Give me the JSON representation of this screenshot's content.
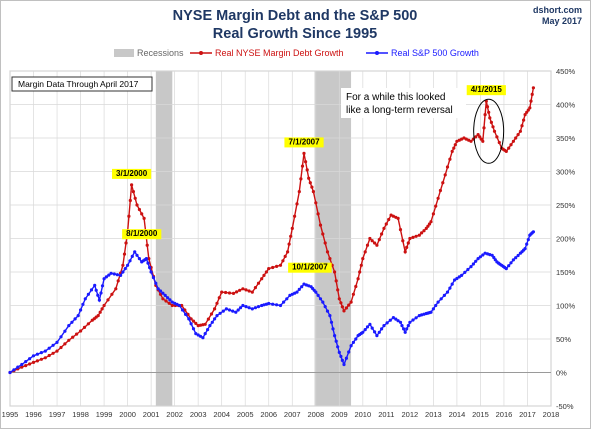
{
  "header": {
    "title_line1": "NYSE Margin Debt and the S&P 500",
    "title_line2": "Real Growth Since 1995",
    "source": "dshort.com",
    "date": "May 2017"
  },
  "note": "Margin Data Through April 2017",
  "callout": {
    "line1": "For a while this looked",
    "line2": "like a long-term reversal"
  },
  "colors": {
    "margin": "#cc1111",
    "sp500": "#1a1aff",
    "recession": "#c8c8c8",
    "highlight": "#ffff00",
    "title": "#1f3864"
  },
  "chart_data": {
    "type": "line",
    "title": "NYSE Margin Debt and the S&P 500 Real Growth Since 1995",
    "xlim": [
      1995,
      2018
    ],
    "ylim": [
      -50,
      450
    ],
    "x_ticks": [
      "1995",
      "1996",
      "1997",
      "1998",
      "1999",
      "2000",
      "2001",
      "2002",
      "2003",
      "2004",
      "2005",
      "2006",
      "2007",
      "2008",
      "2009",
      "2010",
      "2011",
      "2012",
      "2013",
      "2014",
      "2015",
      "2016",
      "2017",
      "2018"
    ],
    "y_ticks": [
      "-50%",
      "0%",
      "50%",
      "100%",
      "150%",
      "200%",
      "250%",
      "300%",
      "350%",
      "400%",
      "450%"
    ],
    "grid": true,
    "legend_position": "top",
    "legend": [
      {
        "label": "Recessions",
        "kind": "band"
      },
      {
        "label": "Real NYSE Margin Debt Growth",
        "kind": "line"
      },
      {
        "label": "Real S&P 500 Growth",
        "kind": "line"
      }
    ],
    "recessions": [
      [
        2001.2,
        2001.9
      ],
      [
        2007.95,
        2009.5
      ]
    ],
    "series": [
      {
        "name": "Real NYSE Margin Debt Growth",
        "points": [
          [
            1995.0,
            0
          ],
          [
            1995.5,
            8
          ],
          [
            1996.0,
            15
          ],
          [
            1996.5,
            22
          ],
          [
            1997.0,
            32
          ],
          [
            1997.5,
            48
          ],
          [
            1998.0,
            62
          ],
          [
            1998.5,
            78
          ],
          [
            1998.75,
            85
          ],
          [
            1999.0,
            100
          ],
          [
            1999.5,
            125
          ],
          [
            1999.8,
            160
          ],
          [
            2000.0,
            210
          ],
          [
            2000.17,
            280
          ],
          [
            2000.4,
            250
          ],
          [
            2000.7,
            230
          ],
          [
            2000.9,
            170
          ],
          [
            2001.2,
            130
          ],
          [
            2001.5,
            110
          ],
          [
            2001.9,
            100
          ],
          [
            2002.3,
            100
          ],
          [
            2002.7,
            80
          ],
          [
            2003.0,
            70
          ],
          [
            2003.3,
            72
          ],
          [
            2003.7,
            95
          ],
          [
            2004.0,
            120
          ],
          [
            2004.5,
            118
          ],
          [
            2004.9,
            125
          ],
          [
            2005.3,
            120
          ],
          [
            2005.7,
            140
          ],
          [
            2006.0,
            155
          ],
          [
            2006.5,
            160
          ],
          [
            2006.8,
            180
          ],
          [
            2007.0,
            215
          ],
          [
            2007.3,
            270
          ],
          [
            2007.5,
            327
          ],
          [
            2007.7,
            290
          ],
          [
            2007.9,
            270
          ],
          [
            2008.2,
            220
          ],
          [
            2008.5,
            180
          ],
          [
            2008.8,
            150
          ],
          [
            2009.0,
            110
          ],
          [
            2009.2,
            92
          ],
          [
            2009.5,
            105
          ],
          [
            2009.8,
            140
          ],
          [
            2010.0,
            170
          ],
          [
            2010.3,
            200
          ],
          [
            2010.6,
            190
          ],
          [
            2010.9,
            215
          ],
          [
            2011.2,
            235
          ],
          [
            2011.5,
            230
          ],
          [
            2011.8,
            180
          ],
          [
            2012.0,
            200
          ],
          [
            2012.4,
            205
          ],
          [
            2012.7,
            215
          ],
          [
            2012.9,
            225
          ],
          [
            2013.2,
            260
          ],
          [
            2013.5,
            295
          ],
          [
            2013.8,
            330
          ],
          [
            2014.0,
            345
          ],
          [
            2014.3,
            350
          ],
          [
            2014.6,
            345
          ],
          [
            2014.9,
            355
          ],
          [
            2015.1,
            345
          ],
          [
            2015.25,
            405
          ],
          [
            2015.4,
            380
          ],
          [
            2015.6,
            360
          ],
          [
            2015.9,
            335
          ],
          [
            2016.1,
            330
          ],
          [
            2016.4,
            345
          ],
          [
            2016.7,
            360
          ],
          [
            2016.9,
            385
          ],
          [
            2017.1,
            395
          ],
          [
            2017.25,
            425
          ]
        ]
      },
      {
        "name": "Real S&P 500 Growth",
        "points": [
          [
            1995.0,
            0
          ],
          [
            1995.5,
            12
          ],
          [
            1996.0,
            25
          ],
          [
            1996.5,
            32
          ],
          [
            1997.0,
            45
          ],
          [
            1997.5,
            70
          ],
          [
            1997.9,
            85
          ],
          [
            1998.2,
            110
          ],
          [
            1998.6,
            130
          ],
          [
            1998.8,
            108
          ],
          [
            1999.0,
            140
          ],
          [
            1999.3,
            148
          ],
          [
            1999.7,
            145
          ],
          [
            2000.0,
            160
          ],
          [
            2000.3,
            180
          ],
          [
            2000.6,
            165
          ],
          [
            2000.8,
            170
          ],
          [
            2001.0,
            150
          ],
          [
            2001.3,
            125
          ],
          [
            2001.6,
            115
          ],
          [
            2001.9,
            105
          ],
          [
            2002.2,
            100
          ],
          [
            2002.6,
            80
          ],
          [
            2002.9,
            58
          ],
          [
            2003.2,
            52
          ],
          [
            2003.5,
            70
          ],
          [
            2003.8,
            85
          ],
          [
            2004.2,
            95
          ],
          [
            2004.6,
            90
          ],
          [
            2004.9,
            100
          ],
          [
            2005.3,
            95
          ],
          [
            2005.7,
            100
          ],
          [
            2006.0,
            103
          ],
          [
            2006.5,
            100
          ],
          [
            2006.9,
            115
          ],
          [
            2007.2,
            120
          ],
          [
            2007.5,
            132
          ],
          [
            2007.8,
            128
          ],
          [
            2008.0,
            120
          ],
          [
            2008.3,
            105
          ],
          [
            2008.6,
            85
          ],
          [
            2008.8,
            55
          ],
          [
            2009.0,
            30
          ],
          [
            2009.2,
            12
          ],
          [
            2009.5,
            40
          ],
          [
            2009.8,
            55
          ],
          [
            2010.0,
            60
          ],
          [
            2010.3,
            72
          ],
          [
            2010.6,
            55
          ],
          [
            2010.9,
            70
          ],
          [
            2011.3,
            82
          ],
          [
            2011.6,
            75
          ],
          [
            2011.8,
            60
          ],
          [
            2012.0,
            75
          ],
          [
            2012.4,
            85
          ],
          [
            2012.7,
            88
          ],
          [
            2012.9,
            90
          ],
          [
            2013.2,
            105
          ],
          [
            2013.6,
            120
          ],
          [
            2013.9,
            138
          ],
          [
            2014.2,
            145
          ],
          [
            2014.6,
            158
          ],
          [
            2014.9,
            170
          ],
          [
            2015.2,
            178
          ],
          [
            2015.5,
            175
          ],
          [
            2015.7,
            165
          ],
          [
            2015.9,
            160
          ],
          [
            2016.1,
            155
          ],
          [
            2016.4,
            168
          ],
          [
            2016.7,
            178
          ],
          [
            2016.9,
            185
          ],
          [
            2017.1,
            205
          ],
          [
            2017.25,
            210
          ]
        ]
      }
    ],
    "annotations": [
      {
        "text": "3/1/2000",
        "x": 2000.17,
        "y": 280
      },
      {
        "text": "8/1/2000",
        "x": 2000.6,
        "y": 190
      },
      {
        "text": "7/1/2007",
        "x": 2007.5,
        "y": 327
      },
      {
        "text": "10/1/2007",
        "x": 2007.75,
        "y": 140
      },
      {
        "text": "4/1/2015",
        "x": 2015.25,
        "y": 405
      }
    ]
  }
}
